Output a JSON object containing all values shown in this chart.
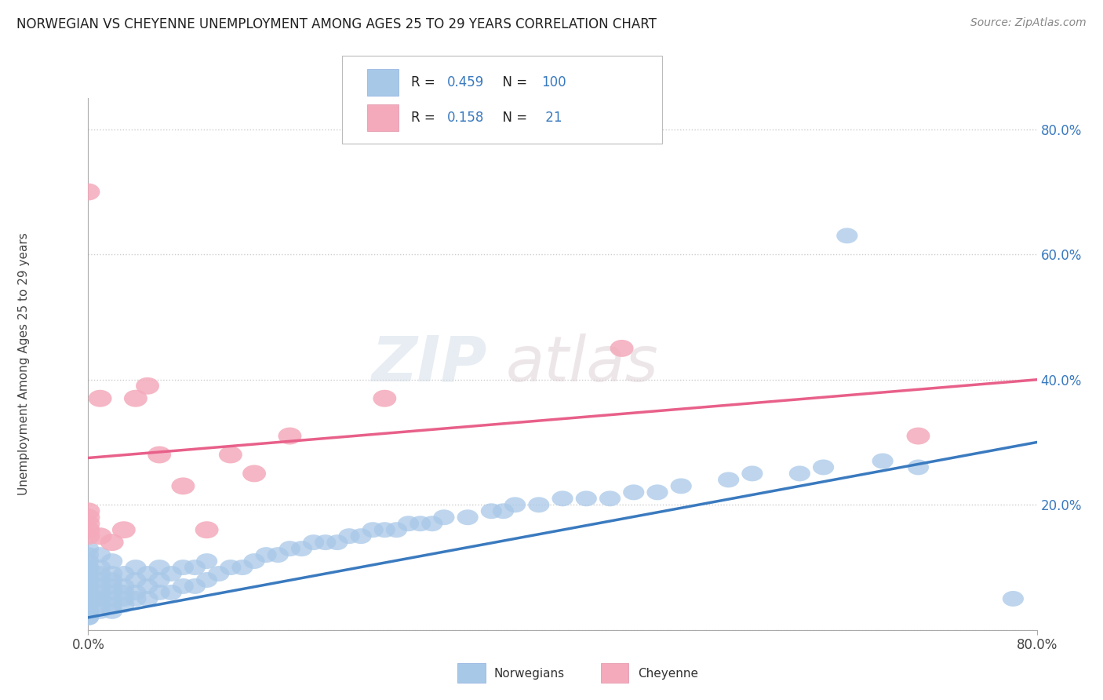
{
  "title": "NORWEGIAN VS CHEYENNE UNEMPLOYMENT AMONG AGES 25 TO 29 YEARS CORRELATION CHART",
  "source": "Source: ZipAtlas.com",
  "ylabel": "Unemployment Among Ages 25 to 29 years",
  "xlim": [
    0.0,
    0.8
  ],
  "ylim": [
    0.0,
    0.85
  ],
  "background_color": "#ffffff",
  "grid_color": "#cccccc",
  "watermark_zip": "ZIP",
  "watermark_atlas": "atlas",
  "norwegian_color": "#a8c8e8",
  "cheyenne_color": "#f4aabb",
  "norwegian_line_color": "#3a7abf",
  "cheyenne_line_color": "#e8608a",
  "label_color": "#3a7abf",
  "R_nor": 0.459,
  "N_nor": 100,
  "R_che": 0.158,
  "N_che": 21,
  "nor_x": [
    0.0,
    0.0,
    0.0,
    0.0,
    0.0,
    0.0,
    0.0,
    0.0,
    0.0,
    0.0,
    0.0,
    0.0,
    0.0,
    0.0,
    0.0,
    0.0,
    0.0,
    0.0,
    0.0,
    0.0,
    0.01,
    0.01,
    0.01,
    0.01,
    0.01,
    0.01,
    0.01,
    0.01,
    0.01,
    0.01,
    0.02,
    0.02,
    0.02,
    0.02,
    0.02,
    0.02,
    0.02,
    0.02,
    0.03,
    0.03,
    0.03,
    0.03,
    0.03,
    0.04,
    0.04,
    0.04,
    0.04,
    0.05,
    0.05,
    0.05,
    0.06,
    0.06,
    0.06,
    0.07,
    0.07,
    0.08,
    0.08,
    0.09,
    0.09,
    0.1,
    0.1,
    0.11,
    0.12,
    0.13,
    0.14,
    0.15,
    0.16,
    0.17,
    0.18,
    0.19,
    0.2,
    0.21,
    0.22,
    0.23,
    0.24,
    0.25,
    0.26,
    0.27,
    0.28,
    0.29,
    0.3,
    0.32,
    0.34,
    0.35,
    0.36,
    0.38,
    0.4,
    0.42,
    0.44,
    0.46,
    0.48,
    0.5,
    0.54,
    0.56,
    0.6,
    0.62,
    0.64,
    0.67,
    0.7,
    0.78
  ],
  "nor_y": [
    0.02,
    0.02,
    0.03,
    0.03,
    0.04,
    0.04,
    0.05,
    0.05,
    0.06,
    0.06,
    0.07,
    0.07,
    0.08,
    0.08,
    0.09,
    0.1,
    0.1,
    0.11,
    0.12,
    0.13,
    0.03,
    0.04,
    0.05,
    0.05,
    0.06,
    0.07,
    0.08,
    0.09,
    0.1,
    0.12,
    0.03,
    0.04,
    0.05,
    0.06,
    0.07,
    0.08,
    0.09,
    0.11,
    0.04,
    0.05,
    0.06,
    0.07,
    0.09,
    0.05,
    0.06,
    0.08,
    0.1,
    0.05,
    0.07,
    0.09,
    0.06,
    0.08,
    0.1,
    0.06,
    0.09,
    0.07,
    0.1,
    0.07,
    0.1,
    0.08,
    0.11,
    0.09,
    0.1,
    0.1,
    0.11,
    0.12,
    0.12,
    0.13,
    0.13,
    0.14,
    0.14,
    0.14,
    0.15,
    0.15,
    0.16,
    0.16,
    0.16,
    0.17,
    0.17,
    0.17,
    0.18,
    0.18,
    0.19,
    0.19,
    0.2,
    0.2,
    0.21,
    0.21,
    0.21,
    0.22,
    0.22,
    0.23,
    0.24,
    0.25,
    0.25,
    0.26,
    0.63,
    0.27,
    0.26,
    0.05
  ],
  "che_x": [
    0.0,
    0.0,
    0.0,
    0.0,
    0.0,
    0.0,
    0.01,
    0.01,
    0.02,
    0.03,
    0.04,
    0.05,
    0.06,
    0.08,
    0.1,
    0.12,
    0.14,
    0.17,
    0.25,
    0.45,
    0.7
  ],
  "che_y": [
    0.15,
    0.16,
    0.17,
    0.18,
    0.19,
    0.7,
    0.15,
    0.37,
    0.14,
    0.16,
    0.37,
    0.39,
    0.28,
    0.23,
    0.16,
    0.28,
    0.25,
    0.31,
    0.37,
    0.45,
    0.31
  ]
}
